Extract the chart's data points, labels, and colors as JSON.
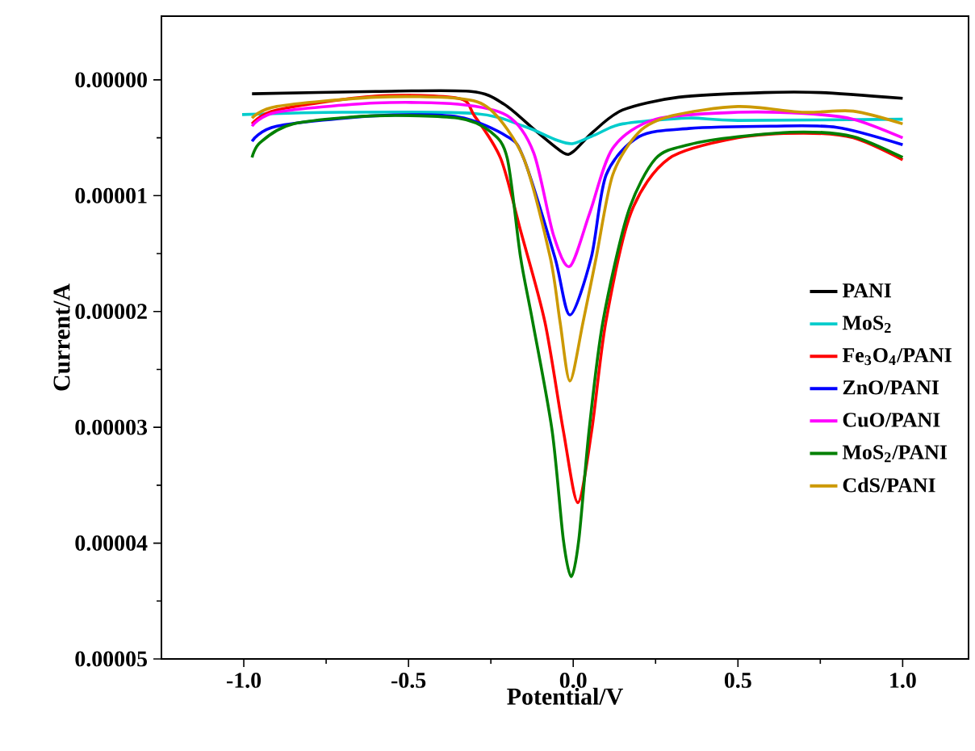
{
  "chart_data": {
    "type": "line",
    "xlabel": "Potential/V",
    "ylabel": "Current/A",
    "xlim": [
      -1.25,
      1.2
    ],
    "ylim": [
      5e-05,
      -5.5e-06
    ],
    "xticks": [
      {
        "value": -1,
        "label": "-1.0"
      },
      {
        "value": -0.5,
        "label": "-0.5"
      },
      {
        "value": 0,
        "label": "0.0"
      },
      {
        "value": 0.5,
        "label": "0.5"
      },
      {
        "value": 1,
        "label": "1.0"
      }
    ],
    "yticks": [
      {
        "value": 0,
        "label": "0.00000"
      },
      {
        "value": 1e-05,
        "label": "0.00001"
      },
      {
        "value": 2e-05,
        "label": "0.00002"
      },
      {
        "value": 3e-05,
        "label": "0.00003"
      },
      {
        "value": 4e-05,
        "label": "0.00004"
      },
      {
        "value": 5e-05,
        "label": "0.00005"
      }
    ],
    "legend": "right",
    "grid": false,
    "marker": "none",
    "line_style": "solid",
    "series": [
      {
        "name": "PANI",
        "color": "#000000",
        "x": [
          -0.975,
          -0.6,
          -0.31,
          -0.21,
          -0.11,
          -0.03,
          0,
          0.06,
          0.15,
          0.32,
          0.58,
          0.75,
          1.0
        ],
        "values": [
          1.2e-06,
          1e-06,
          1e-06,
          2.1e-06,
          4.5e-06,
          6.3e-06,
          6.2e-06,
          4.5e-06,
          2.6e-06,
          1.5e-06,
          1.1e-06,
          1.1e-06,
          1.6e-06
        ]
      },
      {
        "name": "MoS$_{2}$",
        "color": "#00cccc",
        "x": [
          -1.005,
          -0.7,
          -0.3,
          -0.15,
          -0.05,
          0,
          0.07,
          0.15,
          0.35,
          0.5,
          1.0
        ],
        "values": [
          3e-06,
          2.8e-06,
          2.9e-06,
          4e-06,
          5.2e-06,
          5.5e-06,
          4.7e-06,
          3.8e-06,
          3.3e-06,
          3.5e-06,
          3.4e-06
        ]
      },
      {
        "name": "Fe$_{3}$O$_{4}$/PANI",
        "color": "#ff0000",
        "x": [
          -0.975,
          -0.9,
          -0.6,
          -0.35,
          -0.3,
          -0.22,
          -0.16,
          -0.086,
          -0.03,
          0.014,
          0.056,
          0.099,
          0.175,
          0.29,
          0.5,
          0.7,
          0.85,
          1.0
        ],
        "values": [
          3.8e-06,
          2.6e-06,
          1.4e-06,
          1.6e-06,
          3.1e-06,
          6.8e-06,
          1.3e-05,
          2.09e-05,
          3.03e-05,
          3.65e-05,
          3.03e-05,
          2.09e-05,
          1.15e-05,
          6.8e-06,
          5e-06,
          4.6e-06,
          5e-06,
          6.9e-06
        ]
      },
      {
        "name": "ZnO/PANI",
        "color": "#0000ff",
        "x": [
          -0.975,
          -0.9,
          -0.6,
          -0.35,
          -0.2,
          -0.15,
          -0.056,
          -0.01,
          0.055,
          0.1,
          0.2,
          0.35,
          0.6,
          0.8,
          1.0
        ],
        "values": [
          5.3e-06,
          4e-06,
          3.1e-06,
          3.2e-06,
          4.9e-06,
          6.8e-06,
          1.53e-05,
          2.03e-05,
          1.53e-05,
          8.2e-06,
          4.9e-06,
          4.2e-06,
          4e-06,
          4.1e-06,
          5.6e-06
        ]
      },
      {
        "name": "CuO/PANI",
        "color": "#ff00ff",
        "x": [
          -0.975,
          -0.9,
          -0.6,
          -0.35,
          -0.2,
          -0.12,
          -0.06,
          -0.01,
          0.05,
          0.12,
          0.25,
          0.5,
          0.7,
          0.85,
          1.0
        ],
        "values": [
          4e-06,
          2.8e-06,
          2e-06,
          2.1e-06,
          3.1e-06,
          6.3e-06,
          1.34e-05,
          1.61e-05,
          1.15e-05,
          5.9e-06,
          3.4e-06,
          2.8e-06,
          2.9e-06,
          3.4e-06,
          5e-06
        ]
      },
      {
        "name": "MoS$_{2}$/PANI",
        "color": "#008000",
        "x": [
          -0.975,
          -0.95,
          -0.85,
          -0.6,
          -0.35,
          -0.25,
          -0.2,
          -0.16,
          -0.123,
          -0.064,
          -0.03,
          -0.006,
          0.017,
          0.048,
          0.09,
          0.166,
          0.25,
          0.35,
          0.5,
          0.7,
          0.85,
          1.0
        ],
        "values": [
          6.7e-06,
          5.4e-06,
          3.8e-06,
          3.1e-06,
          3.3e-06,
          4.5e-06,
          6.8e-06,
          1.53e-05,
          2.09e-05,
          3.03e-05,
          3.97e-05,
          4.29e-05,
          3.97e-05,
          3.03e-05,
          2.09e-05,
          1.15e-05,
          6.8e-06,
          5.6e-06,
          4.9e-06,
          4.5e-06,
          4.9e-06,
          6.7e-06
        ]
      },
      {
        "name": "CdS/PANI",
        "color": "#cc9900",
        "x": [
          -0.975,
          -0.9,
          -0.6,
          -0.35,
          -0.25,
          -0.15,
          -0.07,
          -0.04,
          -0.01,
          0.03,
          0.07,
          0.12,
          0.2,
          0.3,
          0.5,
          0.7,
          0.85,
          1.0
        ],
        "values": [
          3.3e-06,
          2.3e-06,
          1.5e-06,
          1.6e-06,
          2.6e-06,
          6.8e-06,
          1.53e-05,
          2.09e-05,
          2.6e-05,
          2.09e-05,
          1.53e-05,
          8.2e-06,
          4.5e-06,
          3.1e-06,
          2.3e-06,
          2.8e-06,
          2.7e-06,
          3.8e-06
        ]
      }
    ]
  }
}
